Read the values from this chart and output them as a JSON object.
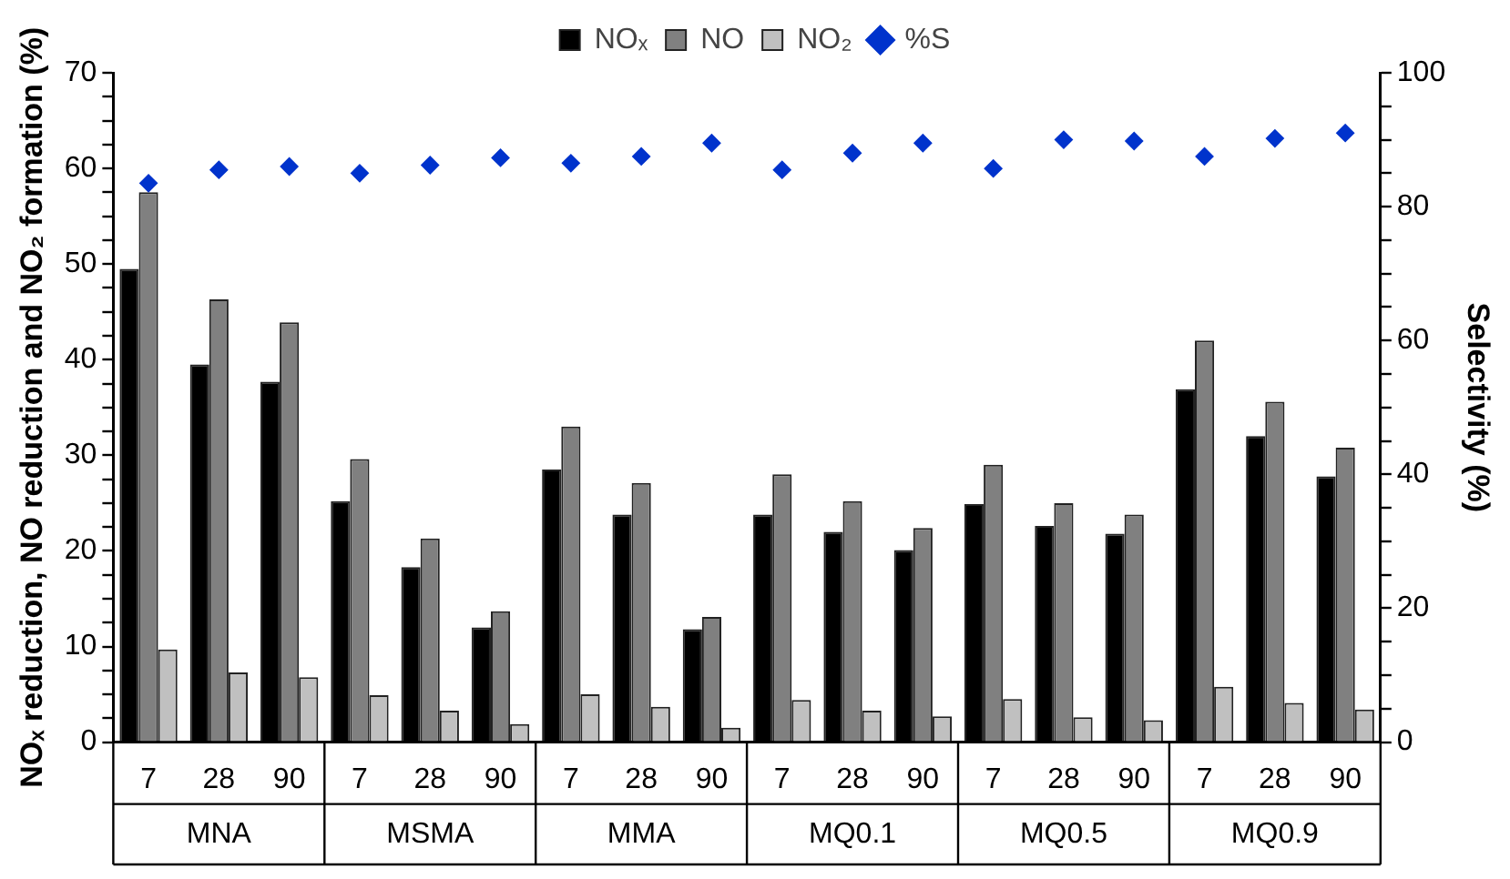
{
  "chart_data": {
    "type": "bar",
    "ylabel": "NOₓ reduction, NO reduction and NO₂ formation (%)",
    "y2label": "Selectivity (%)",
    "categories": [
      "7",
      "28",
      "90",
      "7",
      "28",
      "90",
      "7",
      "28",
      "90",
      "7",
      "28",
      "90",
      "7",
      "28",
      "90",
      "7",
      "28",
      "90"
    ],
    "annotations": [
      "MNA",
      "MSMA",
      "MMA",
      "MQ0.1",
      "MQ0.5",
      "MQ0.9"
    ],
    "series": [
      {
        "name": "NOₓ",
        "color": "#000000",
        "values": [
          49.5,
          39.5,
          37.7,
          25.2,
          18.3,
          12,
          28.5,
          23.8,
          11.8,
          23.8,
          22,
          20.1,
          24.9,
          22.6,
          21.8,
          36.9,
          32,
          27.8
        ]
      },
      {
        "name": "NO",
        "color": "#808080",
        "values": [
          57.5,
          46.3,
          43.9,
          29.6,
          21.3,
          13.7,
          33,
          27.1,
          13.1,
          28,
          25.2,
          22.4,
          29,
          25,
          23.8,
          42,
          35.6,
          30.8
        ]
      },
      {
        "name": "NO₂",
        "color": "#c0c0c0",
        "values": [
          9.7,
          7.3,
          6.8,
          4.9,
          3.3,
          1.9,
          5,
          3.7,
          1.5,
          4.4,
          3.3,
          2.7,
          4.5,
          2.6,
          2.3,
          5.8,
          4.1,
          3.4
        ]
      },
      {
        "name": "%S",
        "type": "scatter",
        "axis": "y2",
        "color": "#0033cc",
        "marker": "diamond",
        "values": [
          83.5,
          85.5,
          86,
          85,
          86.2,
          87.3,
          86.5,
          87.5,
          89.5,
          85.5,
          88,
          89.5,
          85.7,
          90,
          89.8,
          87.5,
          90.2,
          91
        ]
      }
    ],
    "ylim": [
      0,
      70
    ],
    "yticks": [
      0,
      {
        "value": 2.5,
        "label": null
      },
      {
        "value": 5,
        "label": null
      },
      {
        "value": 7.5,
        "label": null
      },
      10,
      {
        "value": 12.5,
        "label": null
      },
      {
        "value": 15,
        "label": null
      },
      {
        "value": 17.5,
        "label": null
      },
      20,
      {
        "value": 22.5,
        "label": null
      },
      {
        "value": 25,
        "label": null
      },
      {
        "value": 27.5,
        "label": null
      },
      30,
      {
        "value": 32.5,
        "label": null
      },
      {
        "value": 35,
        "label": null
      },
      {
        "value": 37.5,
        "label": null
      },
      40,
      {
        "value": 42.5,
        "label": null
      },
      {
        "value": 45,
        "label": null
      },
      {
        "value": 47.5,
        "label": null
      },
      50,
      {
        "value": 52.5,
        "label": null
      },
      {
        "value": 55,
        "label": null
      },
      {
        "value": 57.5,
        "label": null
      },
      60,
      {
        "value": 62.5,
        "label": null
      },
      {
        "value": 65,
        "label": null
      },
      {
        "value": 67.5,
        "label": null
      },
      70
    ],
    "y2lim": [
      0,
      100
    ],
    "y2ticks": [
      0,
      {
        "value": 5,
        "label": null
      },
      {
        "value": 10,
        "label": null
      },
      {
        "value": 15,
        "label": null
      },
      20,
      {
        "value": 25,
        "label": null
      },
      {
        "value": 30,
        "label": null
      },
      {
        "value": 35,
        "label": null
      },
      40,
      {
        "value": 45,
        "label": null
      },
      {
        "value": 50,
        "label": null
      },
      {
        "value": 55,
        "label": null
      },
      60,
      {
        "value": 65,
        "label": null
      },
      {
        "value": 70,
        "label": null
      },
      {
        "value": 75,
        "label": null
      },
      80,
      {
        "value": 85,
        "label": null
      },
      {
        "value": 90,
        "label": null
      },
      {
        "value": 95,
        "label": null
      },
      100
    ],
    "grid": false,
    "legend": "top"
  }
}
